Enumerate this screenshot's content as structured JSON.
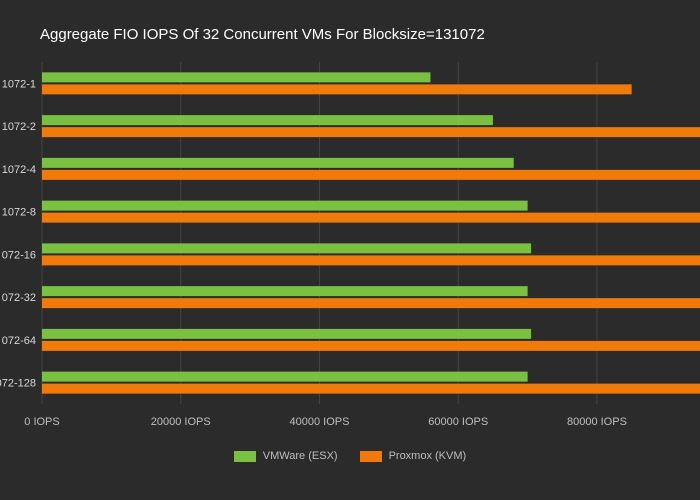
{
  "chart_data": {
    "type": "bar",
    "orientation": "horizontal",
    "title": "Aggregate FIO IOPS Of 32 Concurrent VMs For Blocksize=131072",
    "categories": [
      "1072-1",
      "1072-2",
      "1072-4",
      "1072-8",
      "072-16",
      "072-32",
      "072-64",
      "072-128"
    ],
    "series": [
      {
        "name": "VMWare (ESX)",
        "color": "#7ac142",
        "values": [
          56000,
          65000,
          68000,
          70000,
          70500,
          70000,
          70500,
          70000
        ]
      },
      {
        "name": "Proxmox (KVM)",
        "color": "#f07a0a",
        "values": [
          85000,
          98000,
          98000,
          98000,
          98000,
          98000,
          98000,
          98000
        ]
      }
    ],
    "x_ticks": [
      "0 IOPS",
      "20000 IOPS",
      "40000 IOPS",
      "60000 IOPS",
      "80000 IOPS"
    ],
    "xlim": [
      0,
      100000
    ],
    "grid": true,
    "legend_position": "bottom"
  }
}
